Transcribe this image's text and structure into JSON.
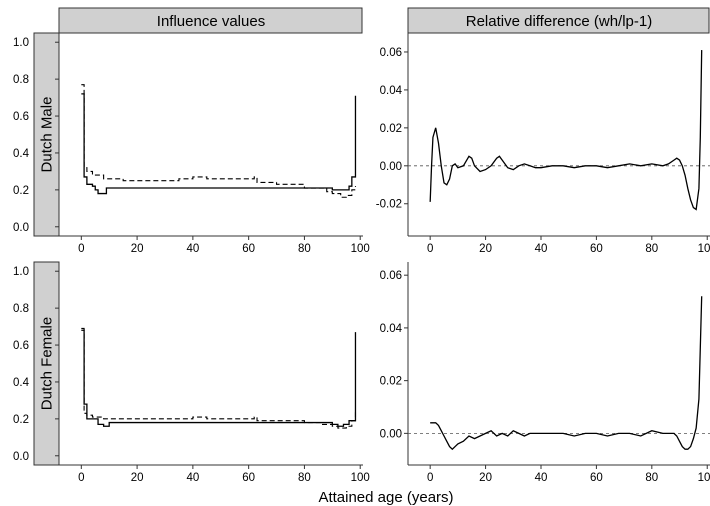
{
  "chart_data": {
    "type": "line",
    "layout": "facet-grid",
    "xlabel": "Attained age (years)",
    "column_titles": [
      "Influence values",
      "Relative difference (wh/lp-1)"
    ],
    "row_titles": [
      "Dutch Male",
      "Dutch Female"
    ],
    "x_ticks": [
      0,
      20,
      40,
      60,
      80,
      100
    ],
    "xlim": [
      -8,
      101
    ],
    "panels": [
      {
        "row": 0,
        "col": 0,
        "ylim": [
          -0.05,
          1.05
        ],
        "y_ticks": [
          0.0,
          0.2,
          0.4,
          0.6,
          0.8,
          1.0
        ],
        "y_tick_labels": [
          "0.0",
          "0.2",
          "0.4",
          "0.6",
          "0.8",
          "1.0"
        ],
        "series": [
          {
            "style": "solid",
            "step": true,
            "x": [
              0,
              0.5,
              1,
              2,
              4,
              5,
              6,
              9,
              85,
              88,
              90,
              94,
              96,
              97,
              98,
              98.3,
              98.3
            ],
            "y": [
              0.72,
              0.72,
              0.27,
              0.23,
              0.22,
              0.2,
              0.18,
              0.21,
              0.21,
              0.21,
              0.2,
              0.2,
              0.22,
              0.27,
              0.27,
              0.27,
              0.71
            ]
          },
          {
            "style": "dashed",
            "step": true,
            "x": [
              0,
              0.5,
              1,
              2,
              4,
              8,
              15,
              25,
              35,
              40,
              45,
              55,
              62,
              63,
              70,
              80,
              88,
              90,
              93,
              95,
              97,
              98.3,
              98.3
            ],
            "y": [
              0.77,
              0.77,
              0.32,
              0.3,
              0.28,
              0.26,
              0.25,
              0.25,
              0.26,
              0.27,
              0.26,
              0.26,
              0.27,
              0.24,
              0.23,
              0.21,
              0.19,
              0.18,
              0.16,
              0.17,
              0.2,
              0.22,
              0.22
            ]
          }
        ]
      },
      {
        "row": 0,
        "col": 1,
        "ylim": [
          -0.037,
          0.07
        ],
        "y_ticks": [
          -0.02,
          0.0,
          0.02,
          0.04,
          0.06
        ],
        "y_tick_labels": [
          "-0.02",
          "0.00",
          "0.02",
          "0.04",
          "0.06"
        ],
        "reference_line": 0,
        "series": [
          {
            "style": "solid",
            "step": false,
            "x": [
              0,
              0.5,
              1,
              2,
              3,
              4,
              5,
              6,
              7,
              8,
              9,
              10,
              12,
              14,
              15,
              16,
              18,
              20,
              22,
              24,
              25,
              26,
              28,
              30,
              32,
              34,
              36,
              38,
              40,
              44,
              48,
              52,
              56,
              60,
              64,
              68,
              72,
              76,
              80,
              84,
              86,
              88,
              89,
              90,
              91,
              92,
              93,
              94,
              95,
              96,
              97,
              97.5,
              98
            ],
            "y": [
              -0.019,
              0.0,
              0.015,
              0.02,
              0.012,
              0.0,
              -0.009,
              -0.01,
              -0.007,
              0.0,
              0.001,
              -0.001,
              0.0,
              0.005,
              0.004,
              0.0,
              -0.003,
              -0.002,
              0.0,
              0.004,
              0.005,
              0.003,
              -0.001,
              -0.002,
              0.0,
              0.001,
              0.0,
              -0.001,
              -0.001,
              0.0,
              0.0,
              -0.001,
              0.0,
              0.0,
              -0.001,
              0.0,
              0.001,
              0.0,
              0.001,
              0.0,
              0.001,
              0.003,
              0.004,
              0.003,
              0.0,
              -0.005,
              -0.012,
              -0.018,
              -0.022,
              -0.023,
              -0.012,
              0.015,
              0.061
            ]
          }
        ]
      },
      {
        "row": 1,
        "col": 0,
        "ylim": [
          -0.05,
          1.05
        ],
        "y_ticks": [
          0.0,
          0.2,
          0.4,
          0.6,
          0.8,
          1.0
        ],
        "y_tick_labels": [
          "0.0",
          "0.2",
          "0.4",
          "0.6",
          "0.8",
          "1.0"
        ],
        "series": [
          {
            "style": "solid",
            "step": true,
            "x": [
              0,
              0.5,
              1,
              2,
              4,
              6,
              8,
              10,
              88,
              90,
              92,
              94,
              96,
              98.3,
              98.3
            ],
            "y": [
              0.68,
              0.68,
              0.28,
              0.2,
              0.2,
              0.17,
              0.16,
              0.18,
              0.18,
              0.17,
              0.16,
              0.17,
              0.19,
              0.21,
              0.67
            ]
          },
          {
            "style": "dashed",
            "step": true,
            "x": [
              0,
              0.5,
              1,
              2,
              4,
              8,
              15,
              25,
              35,
              40,
              45,
              55,
              62,
              63,
              70,
              80,
              86,
              90,
              92,
              95,
              97,
              98.3,
              98.3
            ],
            "y": [
              0.69,
              0.69,
              0.23,
              0.22,
              0.21,
              0.2,
              0.2,
              0.2,
              0.2,
              0.21,
              0.2,
              0.2,
              0.21,
              0.19,
              0.19,
              0.18,
              0.17,
              0.16,
              0.15,
              0.16,
              0.19,
              0.21,
              0.25
            ]
          }
        ]
      },
      {
        "row": 1,
        "col": 1,
        "ylim": [
          -0.012,
          0.065
        ],
        "y_ticks": [
          0.0,
          0.02,
          0.04,
          0.06
        ],
        "y_tick_labels": [
          "0.00",
          "0.02",
          "0.04",
          "0.06"
        ],
        "reference_line": 0,
        "series": [
          {
            "style": "solid",
            "step": false,
            "x": [
              0,
              1,
              2,
              3,
              4,
              5,
              6,
              7,
              8,
              9,
              10,
              12,
              14,
              16,
              18,
              20,
              22,
              24,
              26,
              28,
              30,
              32,
              34,
              36,
              38,
              40,
              44,
              48,
              52,
              56,
              60,
              64,
              68,
              72,
              76,
              80,
              84,
              86,
              88,
              89,
              90,
              91,
              92,
              93,
              94,
              95,
              96,
              97,
              98
            ],
            "y": [
              0.004,
              0.004,
              0.004,
              0.003,
              0.001,
              -0.001,
              -0.003,
              -0.005,
              -0.006,
              -0.005,
              -0.004,
              -0.003,
              -0.001,
              -0.002,
              -0.001,
              0.0,
              0.001,
              -0.001,
              0.0,
              -0.001,
              0.001,
              0.0,
              -0.001,
              0.0,
              0.0,
              0.0,
              0.0,
              0.0,
              -0.001,
              0.0,
              0.0,
              -0.001,
              0.0,
              0.0,
              -0.001,
              0.001,
              0.0,
              0.0,
              0.0,
              -0.001,
              -0.003,
              -0.005,
              -0.006,
              -0.006,
              -0.005,
              -0.002,
              0.002,
              0.013,
              0.052
            ]
          }
        ]
      }
    ]
  }
}
